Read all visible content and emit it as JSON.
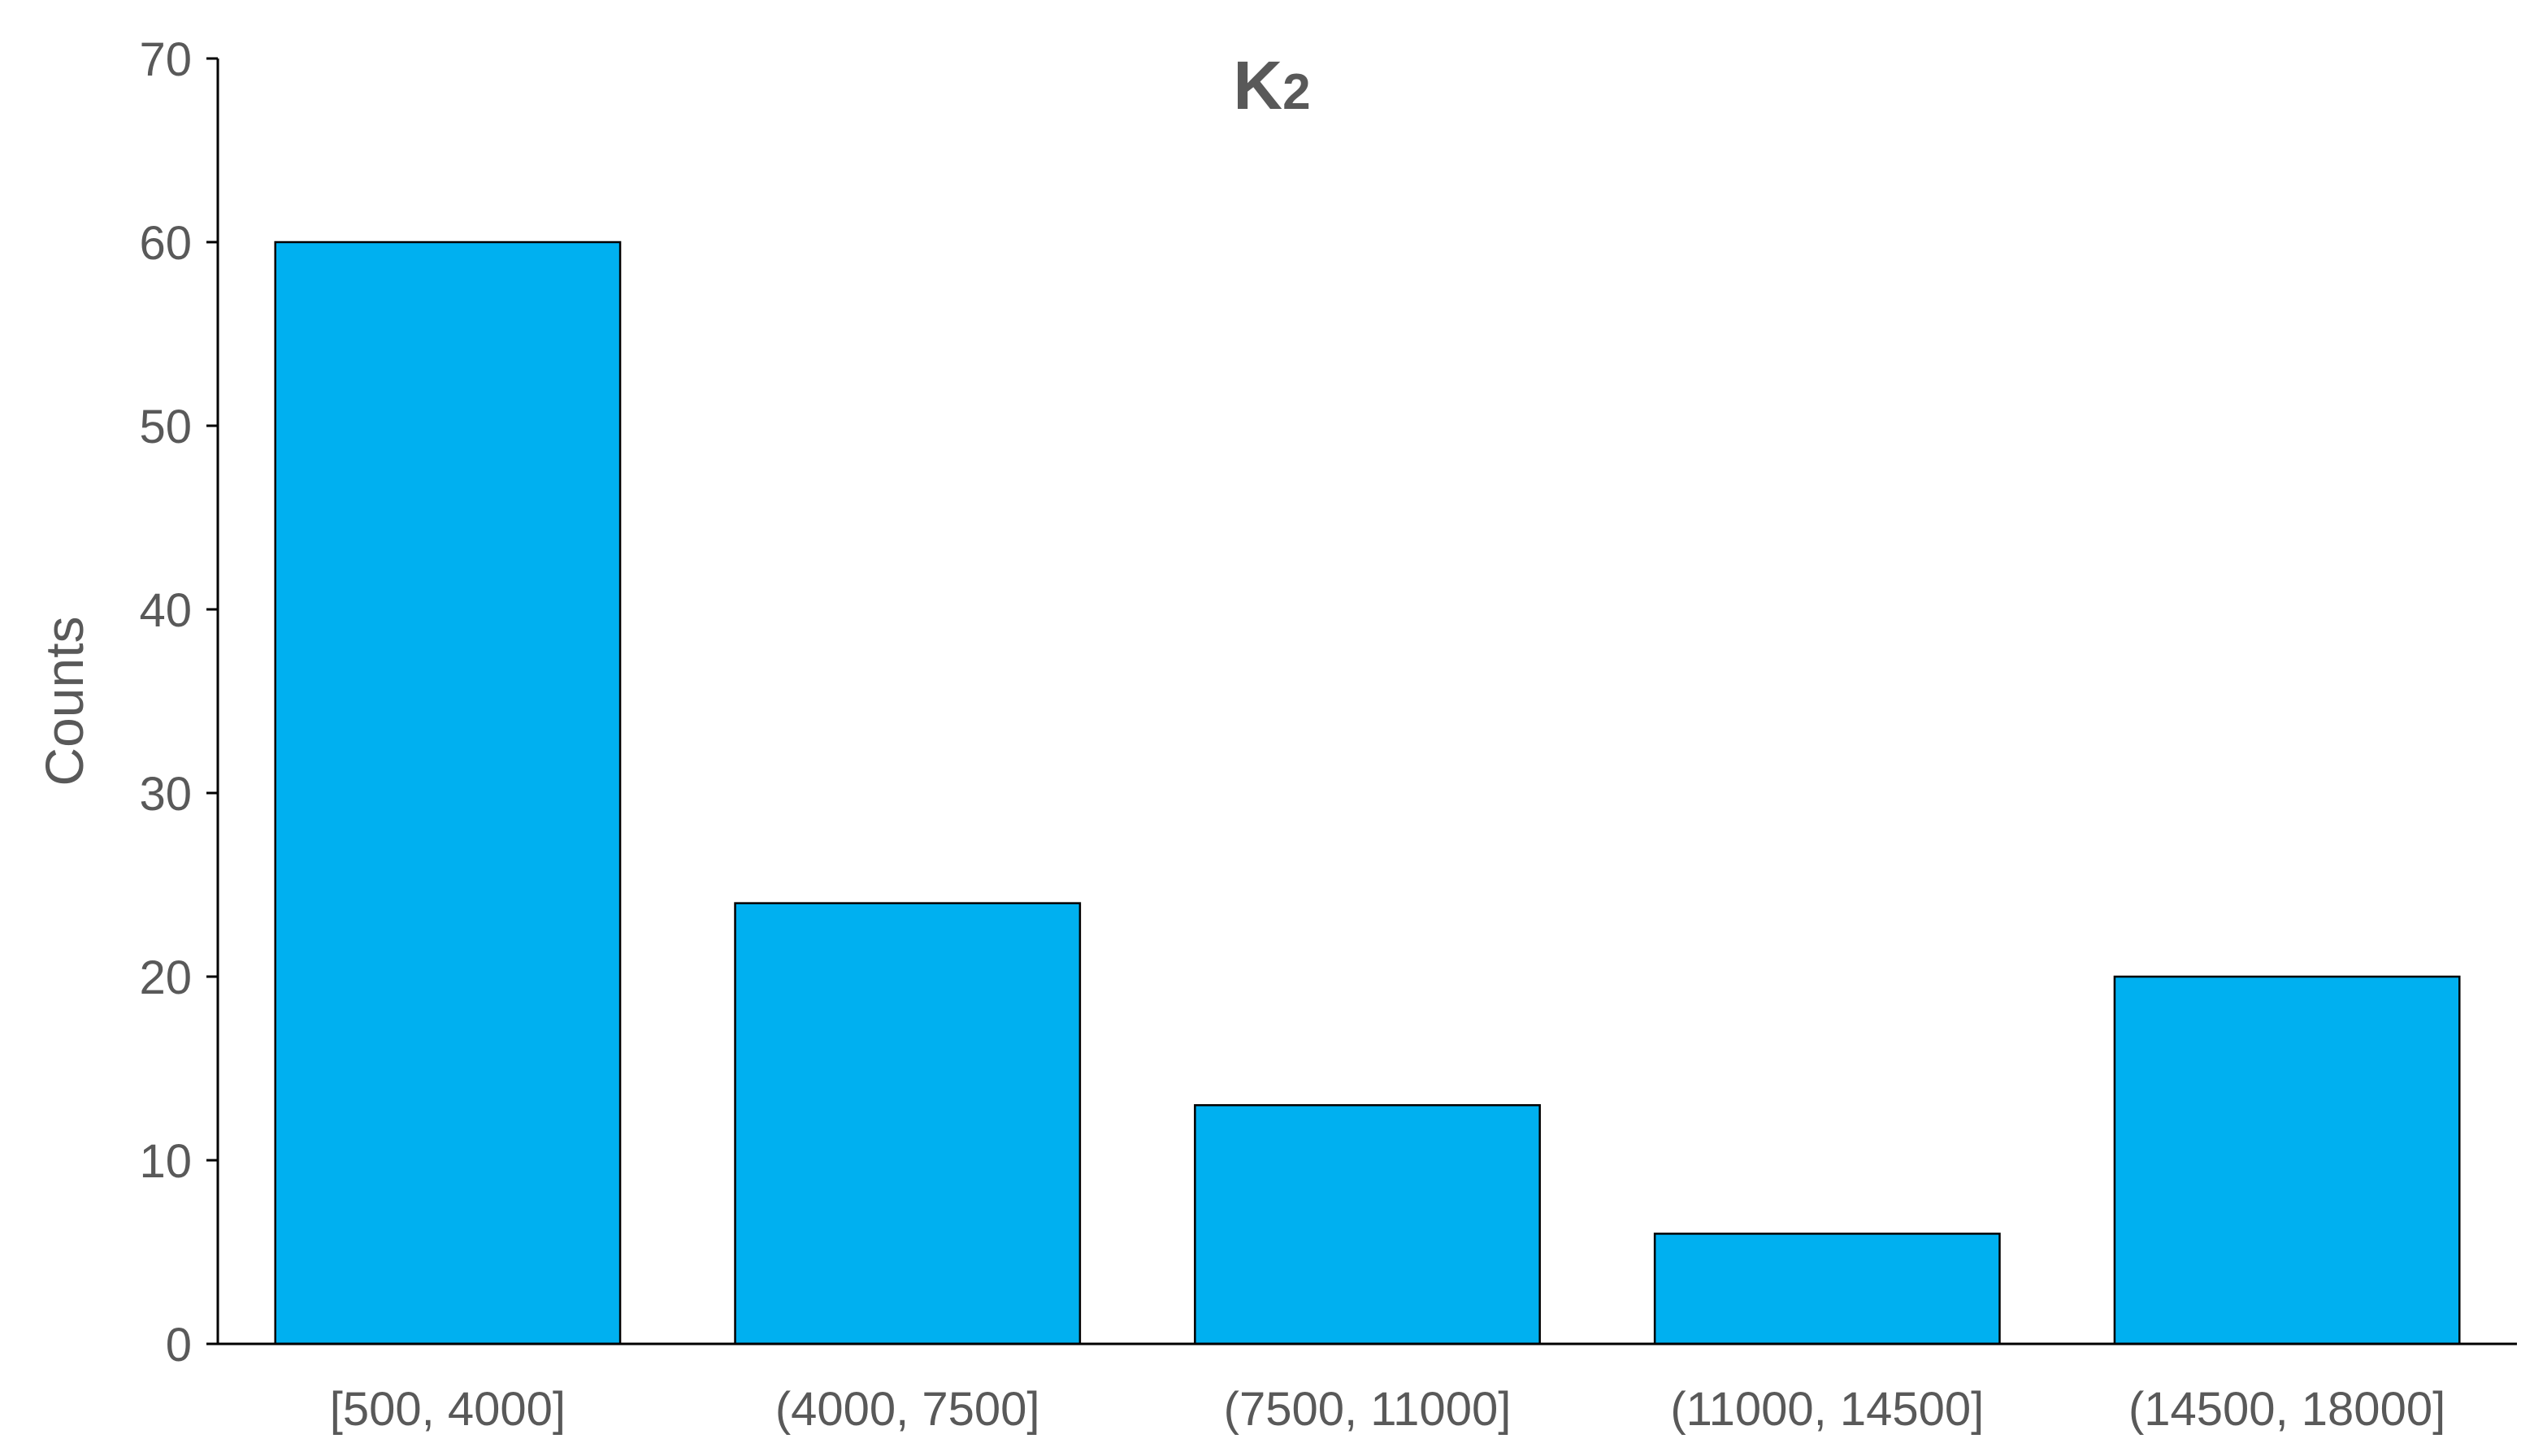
{
  "chart_data": {
    "type": "bar",
    "title": {
      "main": "K",
      "subscript": "2"
    },
    "xlabel": "",
    "ylabel": "Counts",
    "categories": [
      "[500, 4000]",
      "(4000, 7500]",
      "(7500, 11000]",
      "(11000, 14500]",
      "(14500, 18000]"
    ],
    "values": [
      60,
      24,
      13,
      6,
      20
    ],
    "ylim": [
      0,
      70
    ],
    "yticks": [
      0,
      10,
      20,
      30,
      40,
      50,
      60,
      70
    ],
    "grid": false,
    "legend": "none",
    "colors": {
      "bar_fill": "#00B0F0",
      "bar_stroke": "#000000",
      "axis": "#000000",
      "text": "#595959"
    }
  }
}
